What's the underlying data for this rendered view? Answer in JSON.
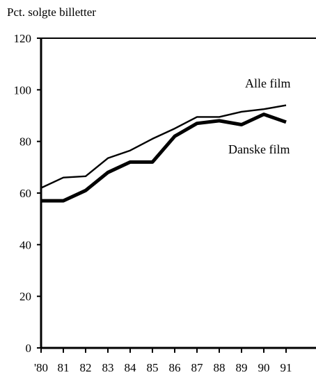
{
  "chart_data": {
    "type": "line",
    "title": "",
    "xlabel": "",
    "ylabel": "Pct. solgte billetter",
    "categories": [
      "'80",
      "81",
      "82",
      "83",
      "84",
      "85",
      "86",
      "87",
      "88",
      "89",
      "90",
      "91"
    ],
    "ylim": [
      0,
      120
    ],
    "yticks": [
      "0",
      "20",
      "40",
      "60",
      "80",
      "100",
      "120"
    ],
    "grid": false,
    "legend": "inline labels",
    "series": [
      {
        "name": "Alle film",
        "values": [
          62,
          66,
          66.5,
          73.5,
          76.5,
          81,
          85,
          89.5,
          89.5,
          91.5,
          92.5,
          94
        ],
        "color": "#000000",
        "style": "thin"
      },
      {
        "name": "Danske film",
        "values": [
          57,
          57,
          61,
          68,
          72,
          72,
          82,
          87,
          88,
          86.5,
          90.5,
          87.5
        ],
        "color": "#000000",
        "style": "thick"
      }
    ]
  }
}
